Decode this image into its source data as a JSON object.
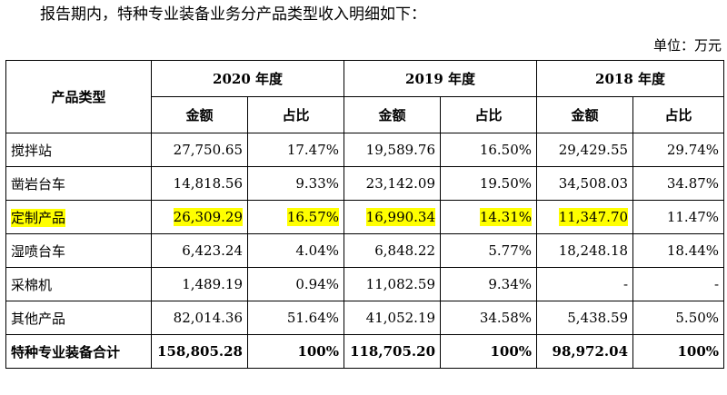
{
  "intro_text": "报告期内，特种专业装备业务分产品类型收入明细如下：",
  "unit_text": "单位：万元",
  "table": {
    "row_header": "产品类型",
    "years": [
      "2020 年度",
      "2019 年度",
      "2018 年度"
    ],
    "subheaders": {
      "amount": "金额",
      "ratio": "占比"
    },
    "rows": [
      {
        "name": "搅拌站",
        "values": [
          "27,750.65",
          "17.47%",
          "19,589.76",
          "16.50%",
          "29,429.55",
          "29.74%"
        ]
      },
      {
        "name": "凿岩台车",
        "values": [
          "14,818.56",
          "9.33%",
          "23,142.09",
          "19.50%",
          "34,508.03",
          "34.87%"
        ]
      },
      {
        "name": "定制产品",
        "values": [
          "26,309.29",
          "16.57%",
          "16,990.34",
          "14.31%",
          "11,347.70",
          "11.47%"
        ]
      },
      {
        "name": "湿喷台车",
        "values": [
          "6,423.24",
          "4.04%",
          "6,848.22",
          "5.77%",
          "18,248.18",
          "18.44%"
        ]
      },
      {
        "name": "采棉机",
        "values": [
          "1,489.19",
          "0.94%",
          "11,082.59",
          "9.34%",
          "-",
          "-"
        ]
      },
      {
        "name": "其他产品",
        "values": [
          "82,014.36",
          "51.64%",
          "41,052.19",
          "34.58%",
          "5,438.59",
          "5.50%"
        ]
      }
    ],
    "total": {
      "name": "特种专业装备合计",
      "values": [
        "158,805.28",
        "100%",
        "118,705.20",
        "100%",
        "98,972.04",
        "100%"
      ]
    }
  },
  "highlight_color": "#ffff00"
}
